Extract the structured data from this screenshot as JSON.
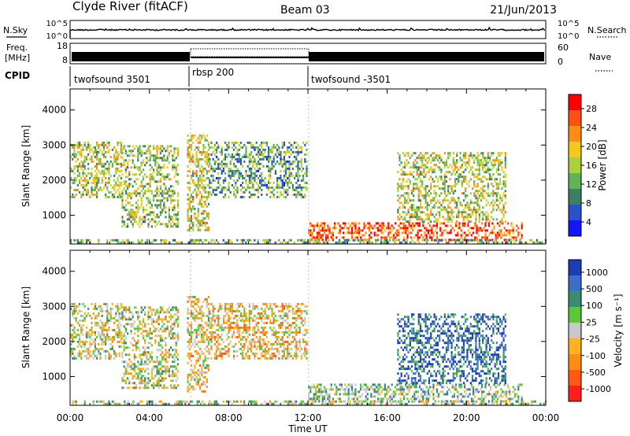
{
  "header": {
    "title": "Clyde River (fitACF)",
    "beam": "Beam 03",
    "date": "21/Jun/2013"
  },
  "noise_panel": {
    "left_label": "N.Sky",
    "left_ticks": [
      "10^5",
      "10^0"
    ],
    "right_label": "N.Search",
    "right_ticks": [
      "10^5",
      "10^0"
    ]
  },
  "freq_panel": {
    "left_label_1": "Freq.",
    "left_label_2": "[MHz]",
    "left_ticks": [
      "18",
      "8"
    ],
    "right_label": "Nave",
    "right_ticks": [
      "60",
      "0"
    ]
  },
  "cpid": {
    "label": "CPID",
    "segments": [
      {
        "name": "twofsound 3501",
        "start": 0,
        "end": 6
      },
      {
        "name": "rbsp 200",
        "start": 6,
        "end": 12
      },
      {
        "name": "twofsound -3501",
        "start": 12,
        "end": 24
      }
    ]
  },
  "xaxis": {
    "label": "Time UT",
    "ticks": [
      "00:00",
      "04:00",
      "08:00",
      "12:00",
      "16:00",
      "20:00",
      "00:00"
    ]
  },
  "power_colorbar": {
    "label": "Power [dB]",
    "ticks": [
      "28",
      "24",
      "20",
      "16",
      "12",
      "8",
      "4"
    ],
    "colors": [
      "#1414ff",
      "#2a52c8",
      "#3c7f64",
      "#5fb45a",
      "#aad23c",
      "#f5c81e",
      "#ff8c14",
      "#ff5014",
      "#ff0000"
    ]
  },
  "velocity_colorbar": {
    "label": "Velocity [m s⁻¹]",
    "ticks": [
      "1000",
      "500",
      "100",
      "25",
      "-25",
      "-100",
      "-500",
      "-1000"
    ],
    "colors": [
      "#ff1e1e",
      "#ff5a14",
      "#ff8c14",
      "#ffb41e",
      "#c8c8c8",
      "#5ac83c",
      "#3c8c6e",
      "#3c6ec8",
      "#1e3cb4"
    ]
  },
  "chart_data": [
    {
      "type": "heatmap",
      "title": "",
      "xlabel": "Time UT",
      "ylabel": "Slant Range [km]",
      "xlim": [
        0,
        24
      ],
      "ylim": [
        180,
        4600
      ],
      "yticks": [
        "1000",
        "2000",
        "3000",
        "4000"
      ],
      "colorbar": "Power [dB]",
      "regions": [
        {
          "t0": 0.0,
          "t1": 2.6,
          "r0": 1500,
          "r1": 3100,
          "level": 0.5
        },
        {
          "t0": 2.6,
          "t1": 5.4,
          "r0": 700,
          "r1": 3000,
          "level": 0.45
        },
        {
          "t0": 5.9,
          "t1": 7.0,
          "r0": 600,
          "r1": 3300,
          "level": 0.55
        },
        {
          "t0": 7.0,
          "t1": 11.9,
          "r0": 1500,
          "r1": 3100,
          "level": 0.35
        },
        {
          "t0": 12.0,
          "t1": 22.8,
          "r0": 300,
          "r1": 800,
          "level": 0.85
        },
        {
          "t0": 16.5,
          "t1": 22.0,
          "r0": 800,
          "r1": 2800,
          "level": 0.5
        },
        {
          "t0": 0.0,
          "t1": 24.0,
          "r0": 200,
          "r1": 320,
          "level": 0.4
        }
      ]
    },
    {
      "type": "heatmap",
      "title": "",
      "xlabel": "Time UT",
      "ylabel": "Slant Range [km]",
      "xlim": [
        0,
        24
      ],
      "ylim": [
        180,
        4600
      ],
      "yticks": [
        "1000",
        "2000",
        "3000",
        "4000"
      ],
      "colorbar": "Velocity [m s⁻¹]",
      "regions": [
        {
          "t0": 0.0,
          "t1": 2.6,
          "r0": 1500,
          "r1": 3100,
          "level": 0.5
        },
        {
          "t0": 2.6,
          "t1": 5.4,
          "r0": 700,
          "r1": 3000,
          "level": 0.5
        },
        {
          "t0": 5.9,
          "t1": 7.0,
          "r0": 600,
          "r1": 3300,
          "level": 0.45
        },
        {
          "t0": 7.0,
          "t1": 11.9,
          "r0": 1500,
          "r1": 3100,
          "level": 0.4
        },
        {
          "t0": 12.0,
          "t1": 22.8,
          "r0": 300,
          "r1": 800,
          "level": 0.62
        },
        {
          "t0": 16.5,
          "t1": 22.0,
          "r0": 800,
          "r1": 2800,
          "level": 0.85
        },
        {
          "t0": 0.0,
          "t1": 24.0,
          "r0": 200,
          "r1": 320,
          "level": 0.55
        }
      ]
    }
  ]
}
